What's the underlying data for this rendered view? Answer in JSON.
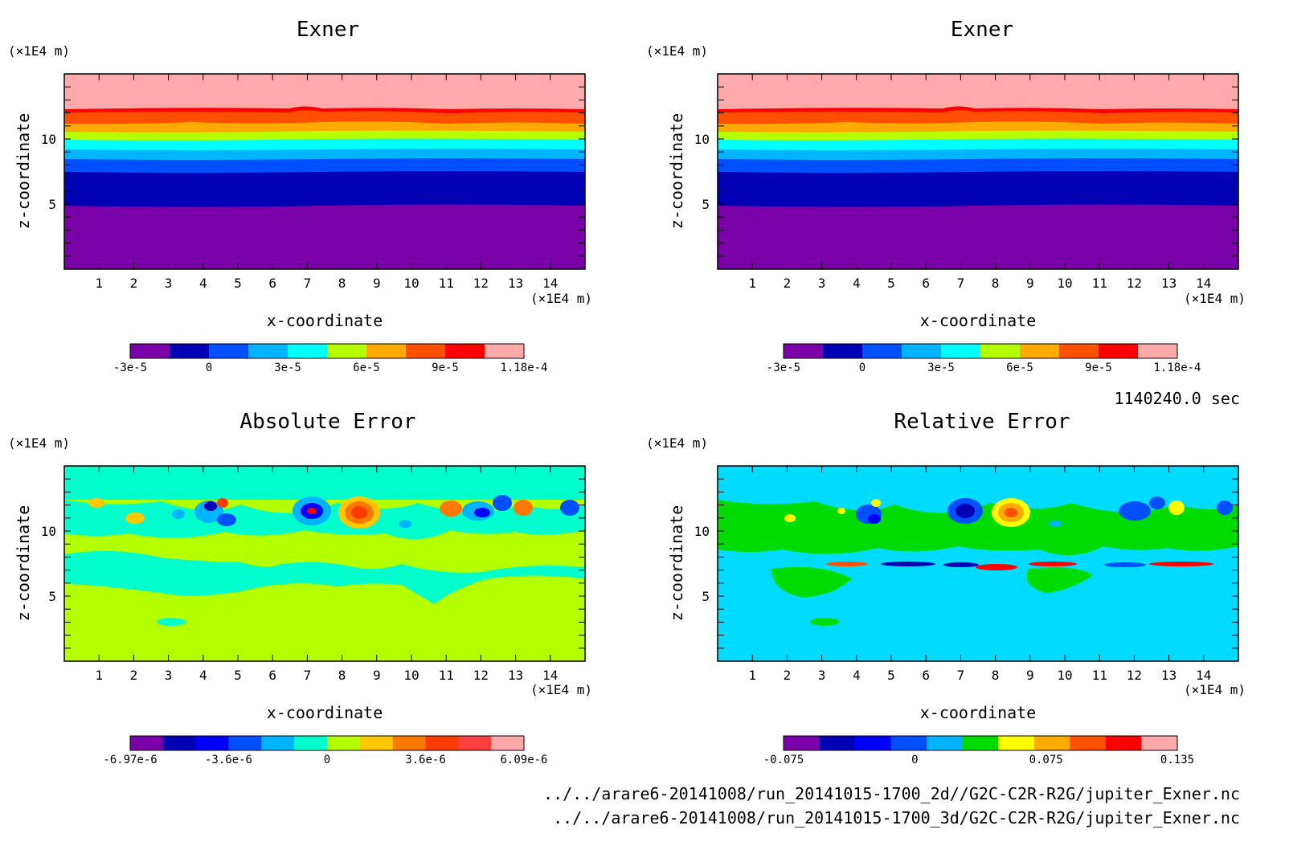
{
  "time_label": "1140240.0 sec",
  "file_paths": [
    "../../arare6-20141008/run_20141015-1700_2d//G2C-C2R-R2G/jupiter_Exner.nc",
    "../../arare6-20141008/run_20141015-1700_3d/G2C-C2R-R2G/jupiter_Exner.nc"
  ],
  "chart_data": [
    {
      "type": "heatmap",
      "title": "Exner",
      "xlabel": "x-coordinate",
      "ylabel": "z-coordinate",
      "x_unit": "(×1E4 m)",
      "y_unit": "(×1E4 m)",
      "xlim": [
        0,
        15
      ],
      "ylim": [
        0,
        15
      ],
      "x_ticks": [
        1,
        2,
        3,
        4,
        5,
        6,
        7,
        8,
        9,
        10,
        11,
        12,
        13,
        14
      ],
      "y_ticks": [
        5,
        10
      ],
      "colorbar": {
        "colors": [
          "#7a00a8",
          "#0000b4",
          "#0050ff",
          "#00b4ff",
          "#00ffff",
          "#b4ff00",
          "#ffaa00",
          "#ff5000",
          "#ff0000",
          "#ffaaaa"
        ],
        "tick_labels": [
          "-3e-5",
          "0",
          "3e-5",
          "6e-5",
          "9e-5",
          "1.18e-4"
        ]
      }
    },
    {
      "type": "heatmap",
      "title": "Exner",
      "xlabel": "x-coordinate",
      "ylabel": "z-coordinate",
      "x_unit": "(×1E4 m)",
      "y_unit": "(×1E4 m)",
      "xlim": [
        0,
        15
      ],
      "ylim": [
        0,
        15
      ],
      "x_ticks": [
        1,
        2,
        3,
        4,
        5,
        6,
        7,
        8,
        9,
        10,
        11,
        12,
        13,
        14
      ],
      "y_ticks": [
        5,
        10
      ],
      "colorbar": {
        "colors": [
          "#7a00a8",
          "#0000b4",
          "#0050ff",
          "#00b4ff",
          "#00ffff",
          "#b4ff00",
          "#ffaa00",
          "#ff5000",
          "#ff0000",
          "#ffaaaa"
        ],
        "tick_labels": [
          "-3e-5",
          "0",
          "3e-5",
          "6e-5",
          "9e-5",
          "1.18e-4"
        ]
      }
    },
    {
      "type": "heatmap",
      "title": "Absolute Error",
      "xlabel": "x-coordinate",
      "ylabel": "z-coordinate",
      "x_unit": "(×1E4 m)",
      "y_unit": "(×1E4 m)",
      "xlim": [
        0,
        15
      ],
      "ylim": [
        0,
        15
      ],
      "x_ticks": [
        1,
        2,
        3,
        4,
        5,
        6,
        7,
        8,
        9,
        10,
        11,
        12,
        13,
        14
      ],
      "y_ticks": [
        5,
        10
      ],
      "colorbar": {
        "colors": [
          "#7a00a8",
          "#0000b4",
          "#0000ff",
          "#0050ff",
          "#00b4ff",
          "#00ffcc",
          "#b4ff00",
          "#ffc800",
          "#ff7800",
          "#ff3c00",
          "#ff4040",
          "#ffaaaa"
        ],
        "tick_labels": [
          "-6.97e-6",
          "-3.6e-6",
          "0",
          "3.6e-6",
          "6.09e-6"
        ]
      }
    },
    {
      "type": "heatmap",
      "title": "Relative Error",
      "xlabel": "x-coordinate",
      "ylabel": "z-coordinate",
      "x_unit": "(×1E4 m)",
      "y_unit": "(×1E4 m)",
      "xlim": [
        0,
        15
      ],
      "ylim": [
        0,
        15
      ],
      "x_ticks": [
        1,
        2,
        3,
        4,
        5,
        6,
        7,
        8,
        9,
        10,
        11,
        12,
        13,
        14
      ],
      "y_ticks": [
        5,
        10
      ],
      "colorbar": {
        "colors": [
          "#7a00a8",
          "#0000b4",
          "#0000ff",
          "#0050ff",
          "#00b4ff",
          "#00dc00",
          "#ffff00",
          "#ffaa00",
          "#ff5000",
          "#ff0000",
          "#ffaaaa"
        ],
        "tick_labels": [
          "-0.075",
          "0",
          "0.075",
          "0.135"
        ]
      }
    }
  ]
}
